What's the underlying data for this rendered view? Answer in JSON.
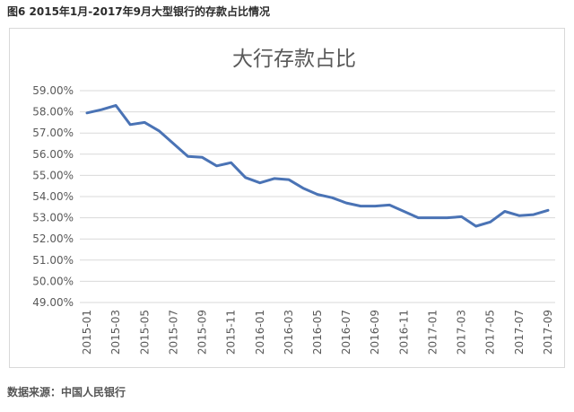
{
  "figure": {
    "caption": "图6 2015年1月-2017年9月大型银行的存款占比情况",
    "source": "数据来源：中国人民银行"
  },
  "chart_data": {
    "type": "line",
    "title": "大行存款占比",
    "xlabel": "",
    "ylabel": "",
    "ylim": [
      49,
      59
    ],
    "y_ticks": [
      "49.00%",
      "50.00%",
      "51.00%",
      "52.00%",
      "53.00%",
      "54.00%",
      "55.00%",
      "56.00%",
      "57.00%",
      "58.00%",
      "59.00%"
    ],
    "x_tick_labels": [
      "2015-01",
      "2015-03",
      "2015-05",
      "2015-07",
      "2015-09",
      "2015-11",
      "2016-01",
      "2016-03",
      "2016-05",
      "2016-07",
      "2016-09",
      "2016-11",
      "2017-01",
      "2017-03",
      "2017-05",
      "2017-07",
      "2017-09"
    ],
    "x": [
      "2015-01",
      "2015-02",
      "2015-03",
      "2015-04",
      "2015-05",
      "2015-06",
      "2015-07",
      "2015-08",
      "2015-09",
      "2015-10",
      "2015-11",
      "2015-12",
      "2016-01",
      "2016-02",
      "2016-03",
      "2016-04",
      "2016-05",
      "2016-06",
      "2016-07",
      "2016-08",
      "2016-09",
      "2016-10",
      "2016-11",
      "2016-12",
      "2017-01",
      "2017-02",
      "2017-03",
      "2017-04",
      "2017-05",
      "2017-06",
      "2017-07",
      "2017-08",
      "2017-09"
    ],
    "series": [
      {
        "name": "",
        "color": "#4a73b5",
        "values": [
          57.95,
          58.1,
          58.3,
          57.4,
          57.5,
          57.1,
          56.5,
          55.9,
          55.85,
          55.45,
          55.6,
          54.9,
          54.65,
          54.85,
          54.8,
          54.4,
          54.1,
          53.95,
          53.7,
          53.55,
          53.55,
          53.6,
          53.3,
          53.0,
          53.0,
          53.0,
          53.05,
          52.6,
          52.8,
          53.3,
          53.1,
          53.15,
          53.35
        ]
      }
    ],
    "grid": true,
    "legend": "none"
  }
}
